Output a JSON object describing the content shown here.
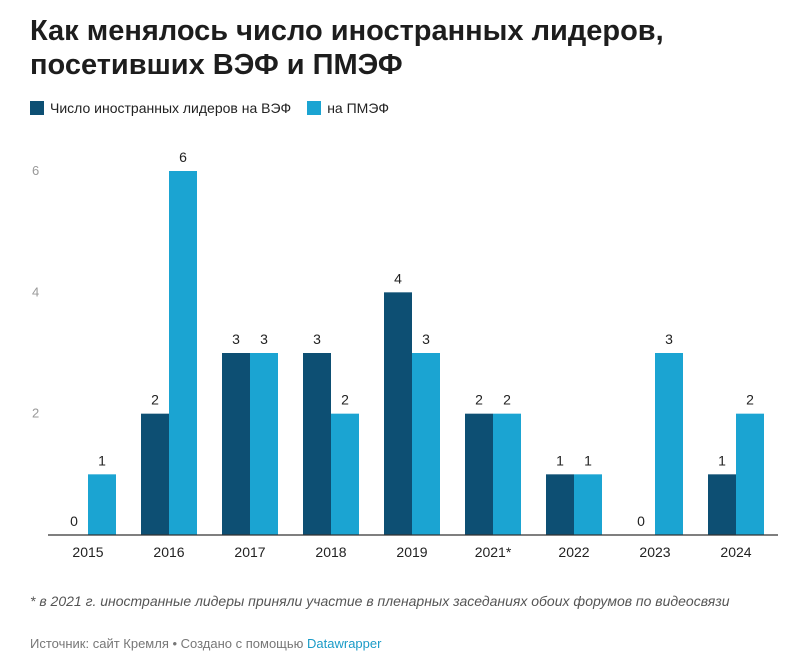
{
  "title": "Как менялось число иностранных лидеров, посетивших ВЭФ и ПМЭФ",
  "legend": [
    {
      "label": "Число иностранных лидеров на ВЭФ",
      "color": "#0d4f73"
    },
    {
      "label": "на ПМЭФ",
      "color": "#1ba4d2"
    }
  ],
  "chart_data": {
    "type": "bar",
    "categories": [
      "2015",
      "2016",
      "2017",
      "2018",
      "2019",
      "2021*",
      "2022",
      "2023",
      "2024"
    ],
    "series": [
      {
        "name": "Число иностранных лидеров на ВЭФ",
        "values": [
          0,
          2,
          3,
          3,
          4,
          2,
          1,
          0,
          1
        ]
      },
      {
        "name": "на ПМЭФ",
        "values": [
          1,
          6,
          3,
          2,
          3,
          2,
          1,
          3,
          2
        ]
      }
    ],
    "ylim": [
      0,
      6
    ],
    "yticks": [
      "2",
      "4",
      "6"
    ],
    "xlabel": "",
    "ylabel": "",
    "grid": false,
    "legend_position": "top-left"
  },
  "footnote": "* в 2021 г. иностранные лидеры приняли участие в пленарных заседаниях обоих форумов по видеосвязи",
  "source": {
    "prefix": "Источник: сайт Кремля • Создано с помощью ",
    "link": "Datawrapper"
  }
}
